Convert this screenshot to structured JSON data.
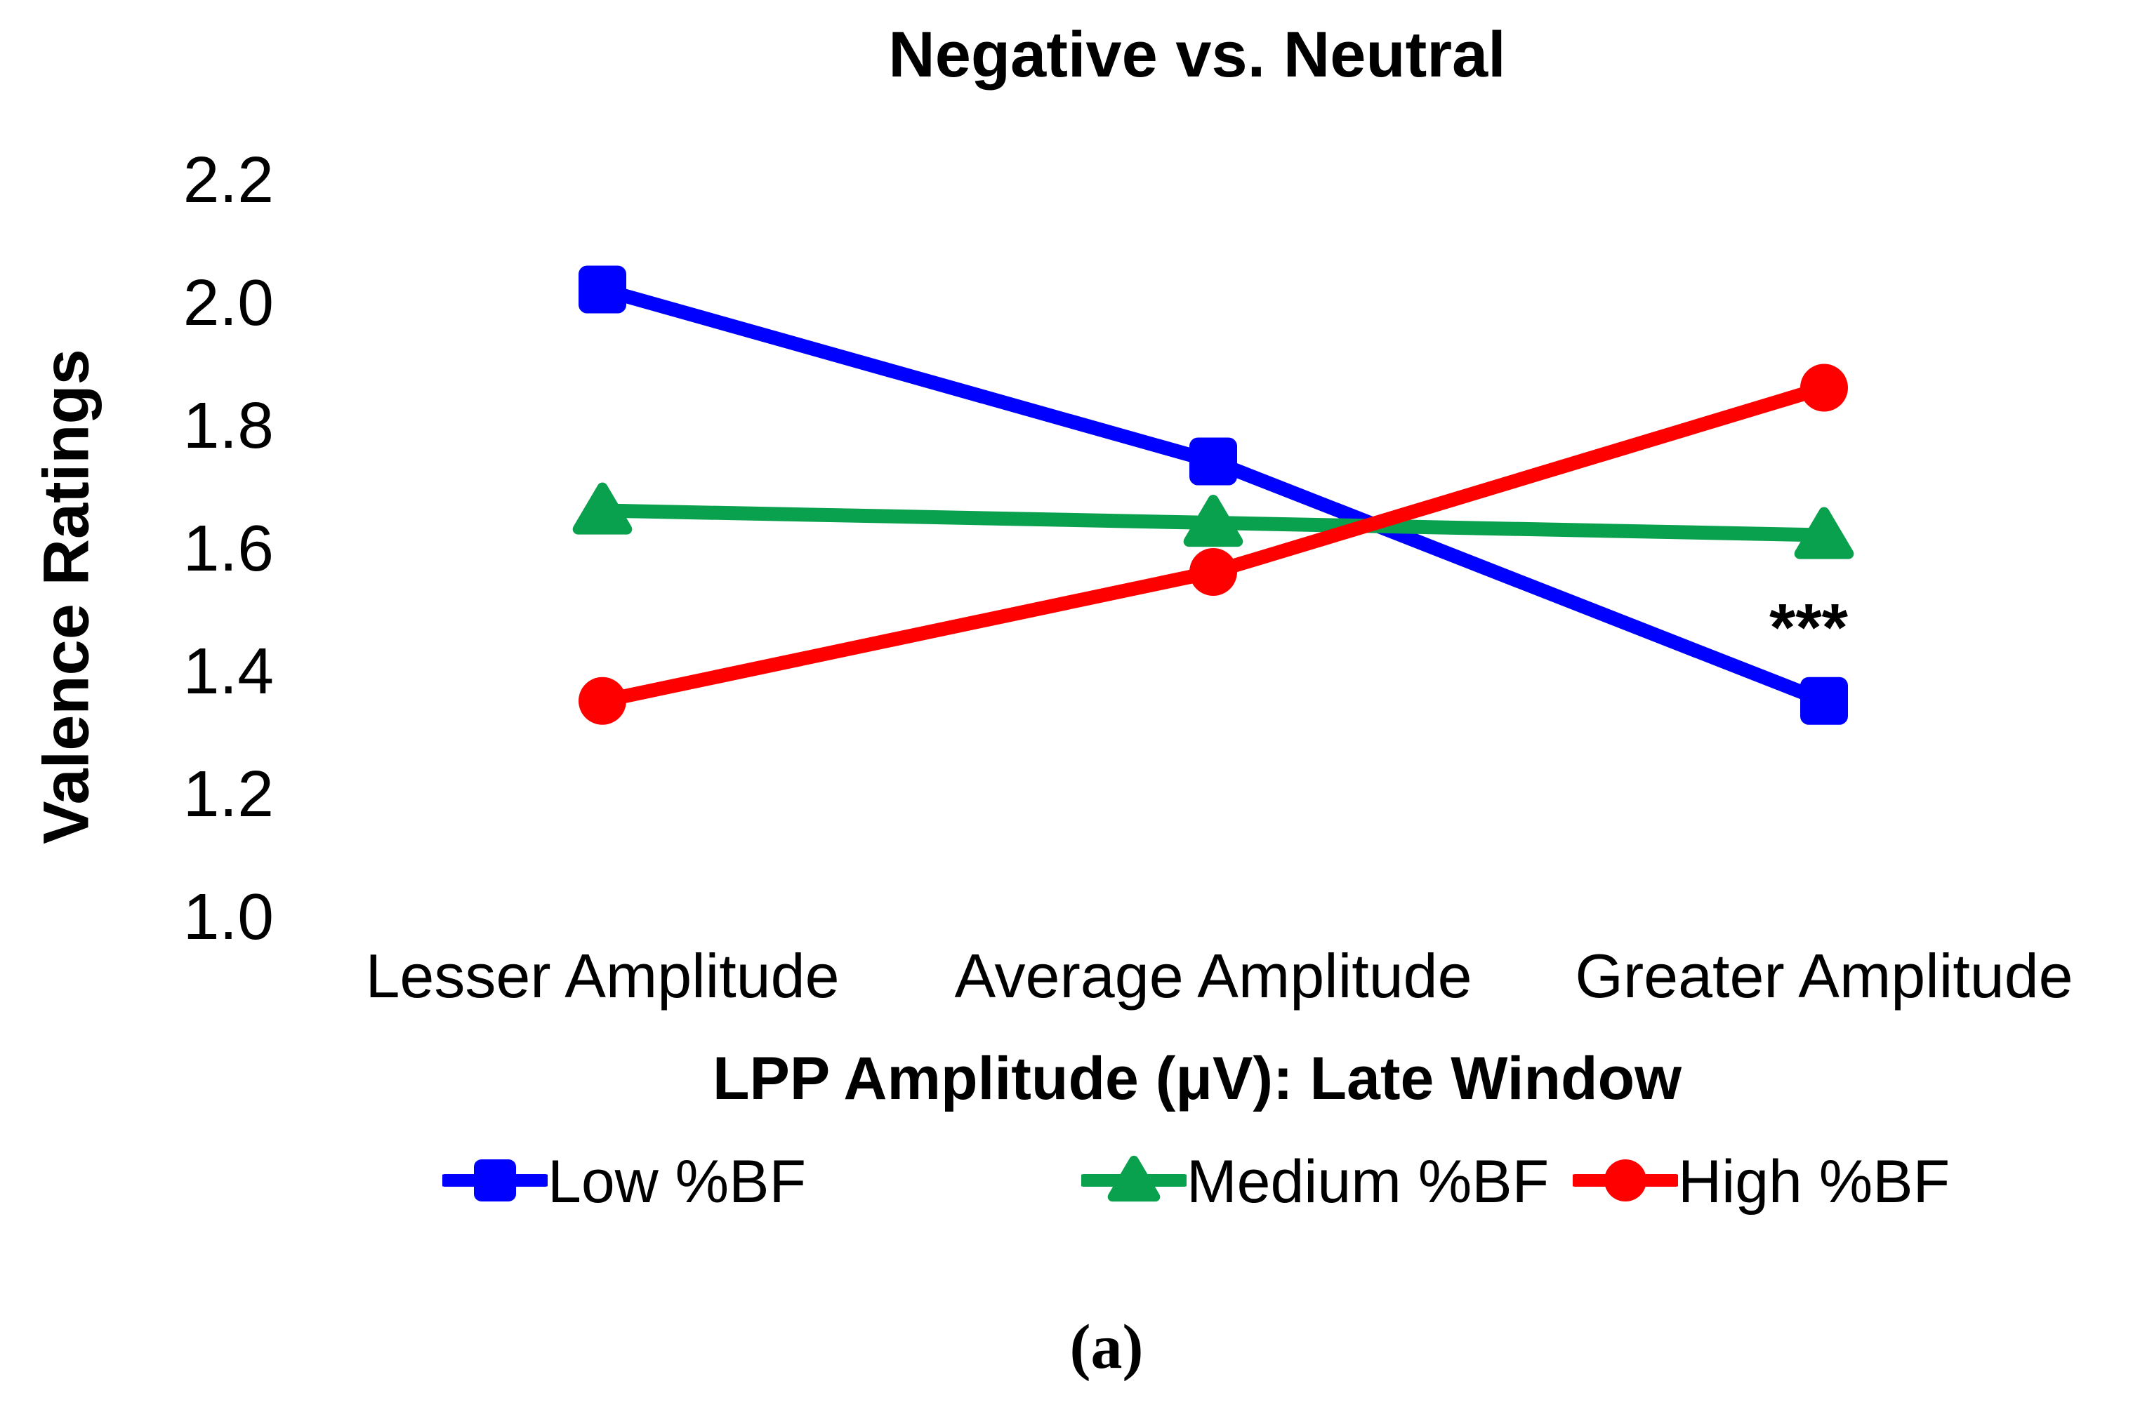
{
  "chart_data": {
    "type": "line",
    "title": "Negative vs. Neutral",
    "ylabel": "Valence Ratings",
    "xlabel": "LPP Amplitude (μV): Late Window",
    "categories": [
      "Lesser Amplitude",
      "Average Amplitude",
      "Greater Amplitude"
    ],
    "y_ticks": [
      "2.2",
      "2.0",
      "1.8",
      "1.6",
      "1.4",
      "1.2",
      "1.0"
    ],
    "ylim": [
      1.0,
      2.2
    ],
    "grid": false,
    "axes_lines": false,
    "legend_position": "bottom",
    "series": [
      {
        "name": "Low %BF",
        "marker": "square",
        "color": "#0000FF",
        "values": [
          2.02,
          1.74,
          1.35
        ]
      },
      {
        "name": "Medium %BF",
        "marker": "triangle",
        "color": "#0AA14E",
        "values": [
          1.66,
          1.64,
          1.62
        ]
      },
      {
        "name": "High %BF",
        "marker": "circle",
        "color": "#FF0000",
        "values": [
          1.35,
          1.56,
          1.86
        ]
      }
    ],
    "annotation": {
      "text": "***",
      "series": 0,
      "category": 2,
      "position": "above"
    }
  },
  "caption": "(a)"
}
